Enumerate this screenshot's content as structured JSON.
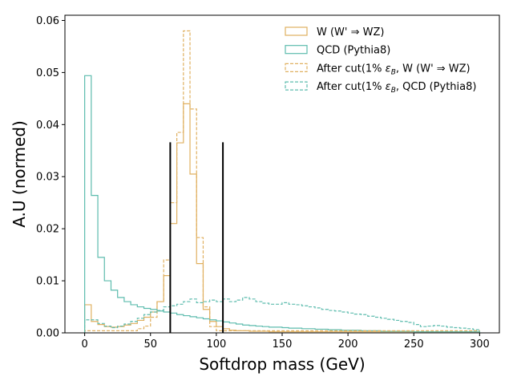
{
  "chart_data": {
    "type": "step-histogram",
    "xlabel": "Softdrop mass (GeV)",
    "ylabel": "A.U (normed)",
    "xlim": [
      -15,
      315
    ],
    "ylim": [
      0,
      0.061
    ],
    "x_ticks": [
      0,
      50,
      100,
      150,
      200,
      250,
      300
    ],
    "y_ticks": [
      0.0,
      0.01,
      0.02,
      0.03,
      0.04,
      0.05,
      0.06
    ],
    "x_tick_labels": [
      "0",
      "50",
      "100",
      "150",
      "200",
      "250",
      "300"
    ],
    "y_tick_labels": [
      "0.00",
      "0.01",
      "0.02",
      "0.03",
      "0.04",
      "0.05",
      "0.06"
    ],
    "bin_width": 5,
    "x_start": 0,
    "legend_position": "upper-right",
    "mass_window_cuts": [
      {
        "x": 65,
        "height": 0.0366
      },
      {
        "x": 105,
        "height": 0.0366
      }
    ],
    "series": [
      {
        "name": "W (W' ⇒ WZ)",
        "color": "#e0b060",
        "dashed": false,
        "values": [
          0.0054,
          0.0022,
          0.0016,
          0.0012,
          0.0011,
          0.0012,
          0.0015,
          0.0018,
          0.0024,
          0.003,
          0.004,
          0.006,
          0.011,
          0.021,
          0.0365,
          0.044,
          0.0305,
          0.0133,
          0.0045,
          0.0022,
          0.0012,
          0.0008,
          0.0005,
          0.0004,
          0.0004,
          0.0003,
          0.0003,
          0.0003,
          0.0002,
          0.0002,
          0.0002,
          0.0002,
          0.0002,
          0.0002,
          0.0002,
          0.0002,
          0.0002,
          0.0002,
          0.0002,
          0.0002,
          0.0002,
          0.0002,
          0.0002,
          0.0002,
          0.0002,
          0.0002,
          0.0002,
          0.0002,
          0.0002,
          0.0002,
          0.0002,
          0.0002,
          0.0002,
          0.0002,
          0.0002,
          0.0002,
          0.0002,
          0.0002,
          0.0002,
          0.0002
        ]
      },
      {
        "name": "QCD (Pythia8)",
        "color": "#5dbcae",
        "dashed": false,
        "values": [
          0.0494,
          0.0264,
          0.0145,
          0.01,
          0.0082,
          0.0068,
          0.006,
          0.0054,
          0.005,
          0.0047,
          0.0045,
          0.0042,
          0.004,
          0.0038,
          0.0035,
          0.0033,
          0.0031,
          0.0029,
          0.0027,
          0.0025,
          0.0023,
          0.0021,
          0.0019,
          0.0017,
          0.0015,
          0.0014,
          0.0013,
          0.0012,
          0.0011,
          0.0011,
          0.001,
          0.0009,
          0.0009,
          0.0008,
          0.0008,
          0.0007,
          0.0007,
          0.0006,
          0.0006,
          0.0005,
          0.0005,
          0.0005,
          0.0004,
          0.0004,
          0.0004,
          0.0003,
          0.0003,
          0.0003,
          0.0003,
          0.0003,
          0.0002,
          0.0002,
          0.0002,
          0.0002,
          0.0002,
          0.0002,
          0.0002,
          0.0002,
          0.0002,
          0.0002
        ]
      },
      {
        "name": "After cut(1% ε_B, W (W' ⇒ WZ)",
        "color": "#e0b060",
        "dashed": true,
        "values": [
          0.0004,
          0.0004,
          0.0004,
          0.0004,
          0.0004,
          0.0004,
          0.0004,
          0.0004,
          0.0008,
          0.0013,
          0.003,
          0.006,
          0.014,
          0.025,
          0.0385,
          0.058,
          0.043,
          0.0183,
          0.005,
          0.0012,
          0.0004,
          0.0004,
          0.0004,
          0.0004,
          0.0004,
          0.0004,
          0.0004,
          0.0004,
          0.0004,
          0.0004,
          0.0004,
          0.0004,
          0.0004,
          0.0004,
          0.0004,
          0.0004,
          0.0004,
          0.0004,
          0.0004,
          0.0004,
          0.0004,
          0.0004,
          0.0004,
          0.0004,
          0.0004,
          0.0004,
          0.0004,
          0.0004,
          0.0004,
          0.0004,
          0.0004,
          0.0004,
          0.0004,
          0.0004,
          0.0004,
          0.0004,
          0.0004,
          0.0004,
          0.0004,
          0.0004
        ]
      },
      {
        "name": "After cut(1% ε_B, QCD (Pythia8)",
        "color": "#5dbcae",
        "dashed": true,
        "values": [
          0.0025,
          0.0025,
          0.0018,
          0.0013,
          0.001,
          0.0013,
          0.0017,
          0.0022,
          0.0028,
          0.0035,
          0.004,
          0.0043,
          0.005,
          0.0052,
          0.0055,
          0.006,
          0.0065,
          0.0058,
          0.006,
          0.0063,
          0.006,
          0.0065,
          0.006,
          0.0063,
          0.0068,
          0.0065,
          0.006,
          0.0057,
          0.0055,
          0.0055,
          0.0058,
          0.0055,
          0.0054,
          0.0052,
          0.005,
          0.0048,
          0.0045,
          0.0043,
          0.0042,
          0.004,
          0.0038,
          0.0036,
          0.0035,
          0.0032,
          0.003,
          0.0028,
          0.0026,
          0.0024,
          0.0022,
          0.002,
          0.0016,
          0.0012,
          0.0013,
          0.0014,
          0.0013,
          0.0011,
          0.001,
          0.0009,
          0.0008,
          0.0006
        ]
      }
    ]
  }
}
